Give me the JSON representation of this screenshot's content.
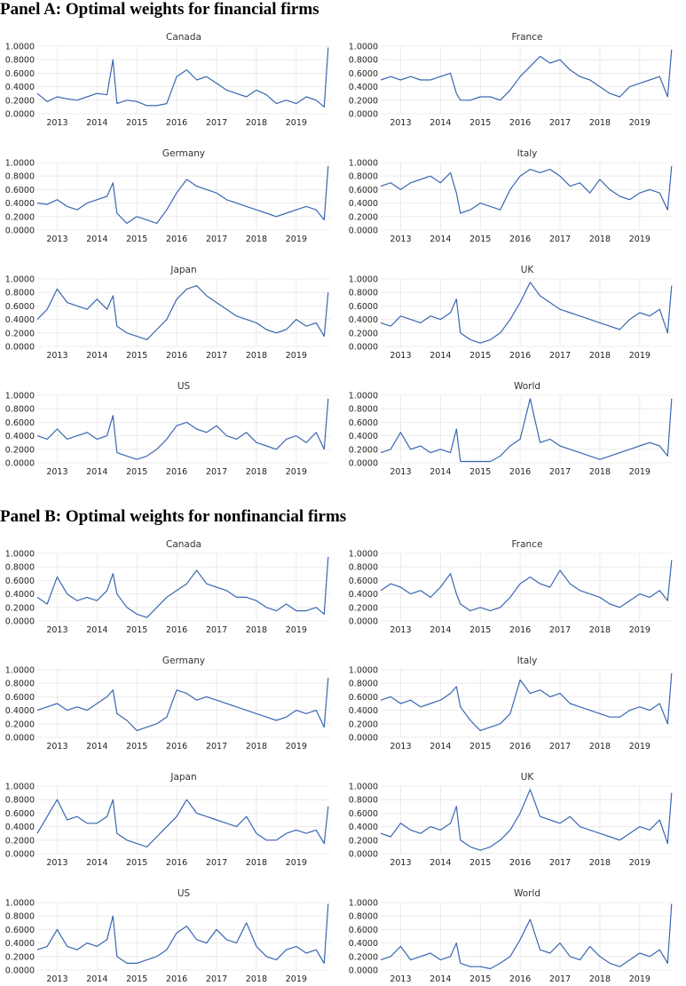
{
  "panels": [
    {
      "title": "Panel A: Optimal weights for financial firms"
    },
    {
      "title": "Panel B: Optimal weights for nonfinancial firms"
    }
  ],
  "axis": {
    "y_ticks": [
      "0.0000",
      "0.2000",
      "0.4000",
      "0.6000",
      "0.8000",
      "1.0000"
    ],
    "x_ticks": [
      "2013",
      "2014",
      "2015",
      "2016",
      "2017",
      "2018",
      "2019"
    ],
    "ylim": [
      0,
      1
    ],
    "xlim": [
      2012.5,
      2019.85
    ]
  },
  "colors": {
    "line": "#3a67b1",
    "grid": "#e6e6e6",
    "text": "#333333"
  },
  "chart_data": [
    {
      "panel": 0,
      "type": "line",
      "title": "Canada",
      "x": [
        2012.5,
        2012.75,
        2013.0,
        2013.25,
        2013.5,
        2013.75,
        2014.0,
        2014.25,
        2014.4,
        2014.5,
        2014.75,
        2015.0,
        2015.25,
        2015.5,
        2015.75,
        2016.0,
        2016.25,
        2016.5,
        2016.75,
        2017.0,
        2017.25,
        2017.5,
        2017.75,
        2018.0,
        2018.25,
        2018.5,
        2018.75,
        2019.0,
        2019.25,
        2019.5,
        2019.7,
        2019.8
      ],
      "y": [
        0.3,
        0.18,
        0.25,
        0.22,
        0.2,
        0.25,
        0.3,
        0.28,
        0.8,
        0.15,
        0.2,
        0.18,
        0.12,
        0.12,
        0.15,
        0.55,
        0.65,
        0.5,
        0.55,
        0.45,
        0.35,
        0.3,
        0.25,
        0.35,
        0.28,
        0.15,
        0.2,
        0.15,
        0.25,
        0.2,
        0.1,
        0.98
      ]
    },
    {
      "panel": 0,
      "type": "line",
      "title": "France",
      "x": [
        2012.5,
        2012.75,
        2013.0,
        2013.25,
        2013.5,
        2013.75,
        2014.0,
        2014.25,
        2014.4,
        2014.5,
        2014.75,
        2015.0,
        2015.25,
        2015.5,
        2015.75,
        2016.0,
        2016.25,
        2016.5,
        2016.75,
        2017.0,
        2017.25,
        2017.5,
        2017.75,
        2018.0,
        2018.25,
        2018.5,
        2018.75,
        2019.0,
        2019.25,
        2019.5,
        2019.7,
        2019.8
      ],
      "y": [
        0.5,
        0.55,
        0.5,
        0.55,
        0.5,
        0.5,
        0.55,
        0.6,
        0.3,
        0.2,
        0.2,
        0.25,
        0.25,
        0.2,
        0.35,
        0.55,
        0.7,
        0.85,
        0.75,
        0.8,
        0.65,
        0.55,
        0.5,
        0.4,
        0.3,
        0.25,
        0.4,
        0.45,
        0.5,
        0.55,
        0.25,
        0.95
      ]
    },
    {
      "panel": 0,
      "type": "line",
      "title": "Germany",
      "x": [
        2012.5,
        2012.75,
        2013.0,
        2013.25,
        2013.5,
        2013.75,
        2014.0,
        2014.25,
        2014.4,
        2014.5,
        2014.75,
        2015.0,
        2015.25,
        2015.5,
        2015.75,
        2016.0,
        2016.25,
        2016.5,
        2016.75,
        2017.0,
        2017.25,
        2017.5,
        2017.75,
        2018.0,
        2018.25,
        2018.5,
        2018.75,
        2019.0,
        2019.25,
        2019.5,
        2019.7,
        2019.8
      ],
      "y": [
        0.4,
        0.38,
        0.45,
        0.35,
        0.3,
        0.4,
        0.45,
        0.5,
        0.7,
        0.25,
        0.1,
        0.2,
        0.15,
        0.1,
        0.3,
        0.55,
        0.75,
        0.65,
        0.6,
        0.55,
        0.45,
        0.4,
        0.35,
        0.3,
        0.25,
        0.2,
        0.25,
        0.3,
        0.35,
        0.3,
        0.15,
        0.95
      ]
    },
    {
      "panel": 0,
      "type": "line",
      "title": "Italy",
      "x": [
        2012.5,
        2012.75,
        2013.0,
        2013.25,
        2013.5,
        2013.75,
        2014.0,
        2014.25,
        2014.4,
        2014.5,
        2014.75,
        2015.0,
        2015.25,
        2015.5,
        2015.75,
        2016.0,
        2016.25,
        2016.5,
        2016.75,
        2017.0,
        2017.25,
        2017.5,
        2017.75,
        2018.0,
        2018.25,
        2018.5,
        2018.75,
        2019.0,
        2019.25,
        2019.5,
        2019.7,
        2019.8
      ],
      "y": [
        0.65,
        0.7,
        0.6,
        0.7,
        0.75,
        0.8,
        0.7,
        0.85,
        0.55,
        0.25,
        0.3,
        0.4,
        0.35,
        0.3,
        0.6,
        0.8,
        0.9,
        0.85,
        0.9,
        0.8,
        0.65,
        0.7,
        0.55,
        0.75,
        0.6,
        0.5,
        0.45,
        0.55,
        0.6,
        0.55,
        0.3,
        0.95
      ]
    },
    {
      "panel": 0,
      "type": "line",
      "title": "Japan",
      "x": [
        2012.5,
        2012.75,
        2013.0,
        2013.25,
        2013.5,
        2013.75,
        2014.0,
        2014.25,
        2014.4,
        2014.5,
        2014.75,
        2015.0,
        2015.25,
        2015.5,
        2015.75,
        2016.0,
        2016.25,
        2016.5,
        2016.75,
        2017.0,
        2017.25,
        2017.5,
        2017.75,
        2018.0,
        2018.25,
        2018.5,
        2018.75,
        2019.0,
        2019.25,
        2019.5,
        2019.7,
        2019.8
      ],
      "y": [
        0.4,
        0.55,
        0.85,
        0.65,
        0.6,
        0.55,
        0.7,
        0.55,
        0.75,
        0.3,
        0.2,
        0.15,
        0.1,
        0.25,
        0.4,
        0.7,
        0.85,
        0.9,
        0.75,
        0.65,
        0.55,
        0.45,
        0.4,
        0.35,
        0.25,
        0.2,
        0.25,
        0.4,
        0.3,
        0.35,
        0.15,
        0.8
      ]
    },
    {
      "panel": 0,
      "type": "line",
      "title": "UK",
      "x": [
        2012.5,
        2012.75,
        2013.0,
        2013.25,
        2013.5,
        2013.75,
        2014.0,
        2014.25,
        2014.4,
        2014.5,
        2014.75,
        2015.0,
        2015.25,
        2015.5,
        2015.75,
        2016.0,
        2016.25,
        2016.5,
        2016.75,
        2017.0,
        2017.25,
        2017.5,
        2017.75,
        2018.0,
        2018.25,
        2018.5,
        2018.75,
        2019.0,
        2019.25,
        2019.5,
        2019.7,
        2019.8
      ],
      "y": [
        0.35,
        0.3,
        0.45,
        0.4,
        0.35,
        0.45,
        0.4,
        0.5,
        0.7,
        0.2,
        0.1,
        0.05,
        0.1,
        0.2,
        0.4,
        0.65,
        0.95,
        0.75,
        0.65,
        0.55,
        0.5,
        0.45,
        0.4,
        0.35,
        0.3,
        0.25,
        0.4,
        0.5,
        0.45,
        0.55,
        0.2,
        0.9
      ]
    },
    {
      "panel": 0,
      "type": "line",
      "title": "US",
      "x": [
        2012.5,
        2012.75,
        2013.0,
        2013.25,
        2013.5,
        2013.75,
        2014.0,
        2014.25,
        2014.4,
        2014.5,
        2014.75,
        2015.0,
        2015.25,
        2015.5,
        2015.75,
        2016.0,
        2016.25,
        2016.5,
        2016.75,
        2017.0,
        2017.25,
        2017.5,
        2017.75,
        2018.0,
        2018.25,
        2018.5,
        2018.75,
        2019.0,
        2019.25,
        2019.5,
        2019.7,
        2019.8
      ],
      "y": [
        0.4,
        0.35,
        0.5,
        0.35,
        0.4,
        0.45,
        0.35,
        0.4,
        0.7,
        0.15,
        0.1,
        0.05,
        0.1,
        0.2,
        0.35,
        0.55,
        0.6,
        0.5,
        0.45,
        0.55,
        0.4,
        0.35,
        0.45,
        0.3,
        0.25,
        0.2,
        0.35,
        0.4,
        0.3,
        0.45,
        0.2,
        0.95
      ]
    },
    {
      "panel": 0,
      "type": "line",
      "title": "World",
      "x": [
        2012.5,
        2012.75,
        2013.0,
        2013.25,
        2013.5,
        2013.75,
        2014.0,
        2014.25,
        2014.4,
        2014.5,
        2014.75,
        2015.0,
        2015.25,
        2015.5,
        2015.75,
        2016.0,
        2016.25,
        2016.5,
        2016.75,
        2017.0,
        2017.25,
        2017.5,
        2017.75,
        2018.0,
        2018.25,
        2018.5,
        2018.75,
        2019.0,
        2019.25,
        2019.5,
        2019.7,
        2019.8
      ],
      "y": [
        0.15,
        0.2,
        0.45,
        0.2,
        0.25,
        0.15,
        0.2,
        0.15,
        0.5,
        0.02,
        0.02,
        0.02,
        0.02,
        0.1,
        0.25,
        0.35,
        0.95,
        0.3,
        0.35,
        0.25,
        0.2,
        0.15,
        0.1,
        0.05,
        0.1,
        0.15,
        0.2,
        0.25,
        0.3,
        0.25,
        0.1,
        0.95
      ]
    },
    {
      "panel": 1,
      "type": "line",
      "title": "Canada",
      "x": [
        2012.5,
        2012.75,
        2013.0,
        2013.25,
        2013.5,
        2013.75,
        2014.0,
        2014.25,
        2014.4,
        2014.5,
        2014.75,
        2015.0,
        2015.25,
        2015.5,
        2015.75,
        2016.0,
        2016.25,
        2016.5,
        2016.75,
        2017.0,
        2017.25,
        2017.5,
        2017.75,
        2018.0,
        2018.25,
        2018.5,
        2018.75,
        2019.0,
        2019.25,
        2019.5,
        2019.7,
        2019.8
      ],
      "y": [
        0.35,
        0.25,
        0.65,
        0.4,
        0.3,
        0.35,
        0.3,
        0.45,
        0.7,
        0.4,
        0.2,
        0.1,
        0.05,
        0.2,
        0.35,
        0.45,
        0.55,
        0.75,
        0.55,
        0.5,
        0.45,
        0.35,
        0.35,
        0.3,
        0.2,
        0.15,
        0.25,
        0.15,
        0.15,
        0.2,
        0.1,
        0.95
      ]
    },
    {
      "panel": 1,
      "type": "line",
      "title": "France",
      "x": [
        2012.5,
        2012.75,
        2013.0,
        2013.25,
        2013.5,
        2013.75,
        2014.0,
        2014.25,
        2014.4,
        2014.5,
        2014.75,
        2015.0,
        2015.25,
        2015.5,
        2015.75,
        2016.0,
        2016.25,
        2016.5,
        2016.75,
        2017.0,
        2017.25,
        2017.5,
        2017.75,
        2018.0,
        2018.25,
        2018.5,
        2018.75,
        2019.0,
        2019.25,
        2019.5,
        2019.7,
        2019.8
      ],
      "y": [
        0.45,
        0.55,
        0.5,
        0.4,
        0.45,
        0.35,
        0.5,
        0.7,
        0.4,
        0.25,
        0.15,
        0.2,
        0.15,
        0.2,
        0.35,
        0.55,
        0.65,
        0.55,
        0.5,
        0.75,
        0.55,
        0.45,
        0.4,
        0.35,
        0.25,
        0.2,
        0.3,
        0.4,
        0.35,
        0.45,
        0.3,
        0.9
      ]
    },
    {
      "panel": 1,
      "type": "line",
      "title": "Germany",
      "x": [
        2012.5,
        2012.75,
        2013.0,
        2013.25,
        2013.5,
        2013.75,
        2014.0,
        2014.25,
        2014.4,
        2014.5,
        2014.75,
        2015.0,
        2015.25,
        2015.5,
        2015.75,
        2016.0,
        2016.25,
        2016.5,
        2016.75,
        2017.0,
        2017.25,
        2017.5,
        2017.75,
        2018.0,
        2018.25,
        2018.5,
        2018.75,
        2019.0,
        2019.25,
        2019.5,
        2019.7,
        2019.8
      ],
      "y": [
        0.4,
        0.45,
        0.5,
        0.4,
        0.45,
        0.4,
        0.5,
        0.6,
        0.7,
        0.35,
        0.25,
        0.1,
        0.15,
        0.2,
        0.3,
        0.7,
        0.65,
        0.55,
        0.6,
        0.55,
        0.5,
        0.45,
        0.4,
        0.35,
        0.3,
        0.25,
        0.3,
        0.4,
        0.35,
        0.4,
        0.15,
        0.88
      ]
    },
    {
      "panel": 1,
      "type": "line",
      "title": "Italy",
      "x": [
        2012.5,
        2012.75,
        2013.0,
        2013.25,
        2013.5,
        2013.75,
        2014.0,
        2014.25,
        2014.4,
        2014.5,
        2014.75,
        2015.0,
        2015.25,
        2015.5,
        2015.75,
        2016.0,
        2016.25,
        2016.5,
        2016.75,
        2017.0,
        2017.25,
        2017.5,
        2017.75,
        2018.0,
        2018.25,
        2018.5,
        2018.75,
        2019.0,
        2019.25,
        2019.5,
        2019.7,
        2019.8
      ],
      "y": [
        0.55,
        0.6,
        0.5,
        0.55,
        0.45,
        0.5,
        0.55,
        0.65,
        0.75,
        0.45,
        0.25,
        0.1,
        0.15,
        0.2,
        0.35,
        0.85,
        0.65,
        0.7,
        0.6,
        0.65,
        0.5,
        0.45,
        0.4,
        0.35,
        0.3,
        0.3,
        0.4,
        0.45,
        0.4,
        0.5,
        0.2,
        0.95
      ]
    },
    {
      "panel": 1,
      "type": "line",
      "title": "Japan",
      "x": [
        2012.5,
        2012.75,
        2013.0,
        2013.25,
        2013.5,
        2013.75,
        2014.0,
        2014.25,
        2014.4,
        2014.5,
        2014.75,
        2015.0,
        2015.25,
        2015.5,
        2015.75,
        2016.0,
        2016.25,
        2016.5,
        2016.75,
        2017.0,
        2017.25,
        2017.5,
        2017.75,
        2018.0,
        2018.25,
        2018.5,
        2018.75,
        2019.0,
        2019.25,
        2019.5,
        2019.7,
        2019.8
      ],
      "y": [
        0.3,
        0.55,
        0.8,
        0.5,
        0.55,
        0.45,
        0.45,
        0.55,
        0.8,
        0.3,
        0.2,
        0.15,
        0.1,
        0.25,
        0.4,
        0.55,
        0.8,
        0.6,
        0.55,
        0.5,
        0.45,
        0.4,
        0.55,
        0.3,
        0.2,
        0.2,
        0.3,
        0.35,
        0.3,
        0.35,
        0.15,
        0.7
      ]
    },
    {
      "panel": 1,
      "type": "line",
      "title": "UK",
      "x": [
        2012.5,
        2012.75,
        2013.0,
        2013.25,
        2013.5,
        2013.75,
        2014.0,
        2014.25,
        2014.4,
        2014.5,
        2014.75,
        2015.0,
        2015.25,
        2015.5,
        2015.75,
        2016.0,
        2016.25,
        2016.5,
        2016.75,
        2017.0,
        2017.25,
        2017.5,
        2017.75,
        2018.0,
        2018.25,
        2018.5,
        2018.75,
        2019.0,
        2019.25,
        2019.5,
        2019.7,
        2019.8
      ],
      "y": [
        0.3,
        0.25,
        0.45,
        0.35,
        0.3,
        0.4,
        0.35,
        0.45,
        0.7,
        0.2,
        0.1,
        0.05,
        0.1,
        0.2,
        0.35,
        0.6,
        0.95,
        0.55,
        0.5,
        0.45,
        0.55,
        0.4,
        0.35,
        0.3,
        0.25,
        0.2,
        0.3,
        0.4,
        0.35,
        0.5,
        0.15,
        0.9
      ]
    },
    {
      "panel": 1,
      "type": "line",
      "title": "US",
      "x": [
        2012.5,
        2012.75,
        2013.0,
        2013.25,
        2013.5,
        2013.75,
        2014.0,
        2014.25,
        2014.4,
        2014.5,
        2014.75,
        2015.0,
        2015.25,
        2015.5,
        2015.75,
        2016.0,
        2016.25,
        2016.5,
        2016.75,
        2017.0,
        2017.25,
        2017.5,
        2017.75,
        2018.0,
        2018.25,
        2018.5,
        2018.75,
        2019.0,
        2019.25,
        2019.5,
        2019.7,
        2019.8
      ],
      "y": [
        0.3,
        0.35,
        0.6,
        0.35,
        0.3,
        0.4,
        0.35,
        0.45,
        0.8,
        0.2,
        0.1,
        0.1,
        0.15,
        0.2,
        0.3,
        0.55,
        0.65,
        0.45,
        0.4,
        0.6,
        0.45,
        0.4,
        0.7,
        0.35,
        0.2,
        0.15,
        0.3,
        0.35,
        0.25,
        0.3,
        0.1,
        0.98
      ]
    },
    {
      "panel": 1,
      "type": "line",
      "title": "World",
      "x": [
        2012.5,
        2012.75,
        2013.0,
        2013.25,
        2013.5,
        2013.75,
        2014.0,
        2014.25,
        2014.4,
        2014.5,
        2014.75,
        2015.0,
        2015.25,
        2015.5,
        2015.75,
        2016.0,
        2016.25,
        2016.5,
        2016.75,
        2017.0,
        2017.25,
        2017.5,
        2017.75,
        2018.0,
        2018.25,
        2018.5,
        2018.75,
        2019.0,
        2019.25,
        2019.5,
        2019.7,
        2019.8
      ],
      "y": [
        0.15,
        0.2,
        0.35,
        0.15,
        0.2,
        0.25,
        0.15,
        0.2,
        0.4,
        0.1,
        0.05,
        0.05,
        0.02,
        0.1,
        0.2,
        0.45,
        0.75,
        0.3,
        0.25,
        0.4,
        0.2,
        0.15,
        0.35,
        0.2,
        0.1,
        0.05,
        0.15,
        0.25,
        0.2,
        0.3,
        0.1,
        0.98
      ]
    }
  ]
}
